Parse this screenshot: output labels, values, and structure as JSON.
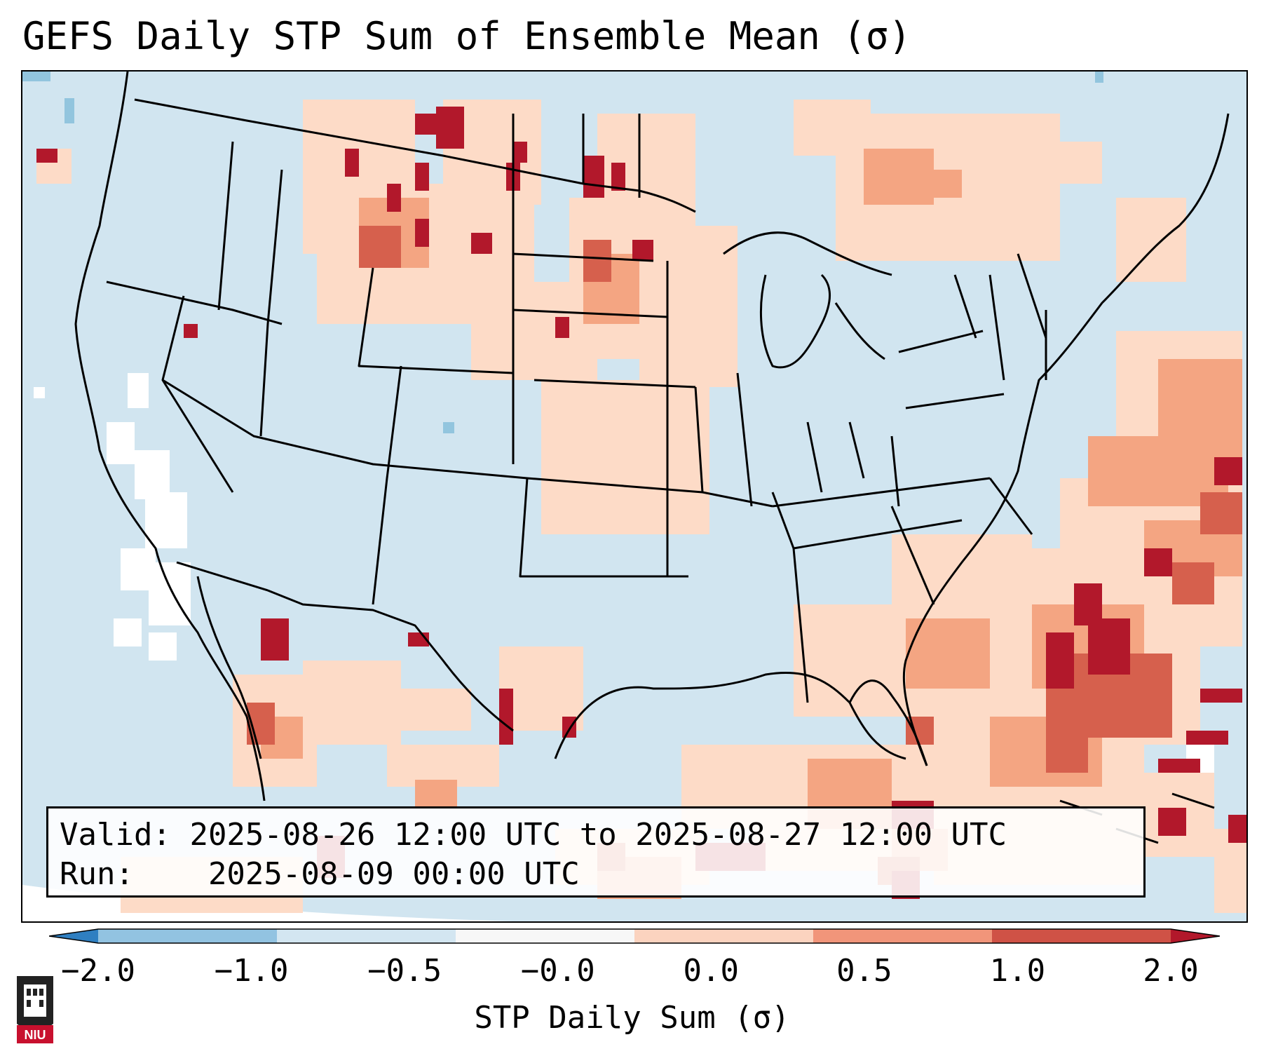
{
  "title": "GEFS Daily STP Sum of Ensemble Mean (σ)",
  "info": {
    "valid_label": "Valid:",
    "valid_value": "2025-08-26 12:00 UTC to 2025-08-27 12:00 UTC",
    "run_label": "Run:",
    "run_value": "2025-08-09 00:00 UTC"
  },
  "colorbar": {
    "label": "STP Daily Sum (σ)",
    "ticks": [
      "−2.0",
      "−1.0",
      "−0.5",
      "−0.0",
      "0.0",
      "0.5",
      "1.0",
      "2.0"
    ],
    "bins": [
      {
        "color": "#2f7fc1"
      },
      {
        "color": "#92c3e1"
      },
      {
        "color": "#d3e6f1"
      },
      {
        "color": "#f7f7f7"
      },
      {
        "color": "#fbd3bf"
      },
      {
        "color": "#f1957a"
      },
      {
        "color": "#cf5246"
      },
      {
        "color": "#b2182b"
      }
    ]
  },
  "logo": {
    "text": "NIU"
  },
  "colors": {
    "ocean_background": "#d1e5f0",
    "near_zero": "#f7f7f7",
    "light_positive": "#fddbc7",
    "medium_positive": "#f4a582",
    "high_positive": "#d6604d",
    "max_positive": "#b2182b"
  }
}
